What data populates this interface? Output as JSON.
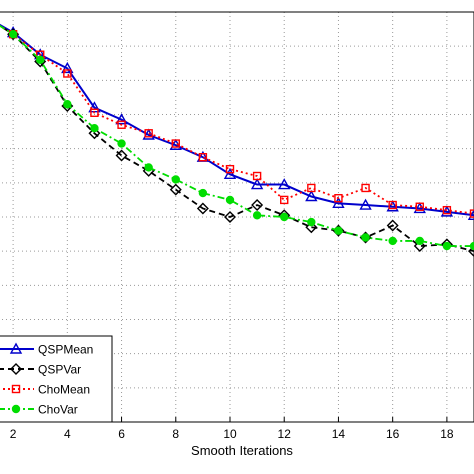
{
  "chart_data": {
    "type": "line",
    "xlabel": "Smooth Iterations",
    "ylabel": "",
    "xlim": [
      1,
      19
    ],
    "ylim": [
      0,
      12
    ],
    "x_ticks": [
      2,
      4,
      6,
      8,
      10,
      12,
      14,
      16,
      18
    ],
    "grid": true,
    "legend_placement": "bottom-left",
    "x": [
      1,
      2,
      3,
      4,
      5,
      6,
      7,
      8,
      9,
      10,
      11,
      12,
      13,
      14,
      15,
      16,
      17,
      18,
      19
    ],
    "series": [
      {
        "name": "QSPMean",
        "color": "#0000cc",
        "line_style": "solid",
        "marker": "triangle",
        "values": [
          11.85,
          11.4,
          10.75,
          10.35,
          9.2,
          8.85,
          8.4,
          8.1,
          7.75,
          7.25,
          6.95,
          6.95,
          6.6,
          6.4,
          6.35,
          6.3,
          6.25,
          6.15,
          6.05
        ]
      },
      {
        "name": "QSPVar",
        "color": "#000000",
        "line_style": "dashed",
        "marker": "diamond",
        "values": [
          11.85,
          11.35,
          10.55,
          9.25,
          8.45,
          7.8,
          7.35,
          6.8,
          6.25,
          6.0,
          6.35,
          6.05,
          5.7,
          5.6,
          5.4,
          5.75,
          5.15,
          5.2,
          5.0
        ]
      },
      {
        "name": "ChoMean",
        "color": "#ff0000",
        "line_style": "dotted",
        "marker": "square",
        "values": [
          11.85,
          11.35,
          10.75,
          10.2,
          9.05,
          8.7,
          8.45,
          8.15,
          7.75,
          7.4,
          7.2,
          6.5,
          6.85,
          6.55,
          6.85,
          6.35,
          6.3,
          6.2,
          6.1
        ]
      },
      {
        "name": "ChoVar",
        "color": "#00dd00",
        "line_style": "dashdot",
        "marker": "circle",
        "values": [
          11.85,
          11.35,
          10.6,
          9.3,
          8.6,
          8.15,
          7.45,
          7.1,
          6.7,
          6.5,
          6.05,
          6.0,
          5.85,
          5.6,
          5.4,
          5.3,
          5.3,
          5.15,
          5.15
        ]
      }
    ]
  }
}
